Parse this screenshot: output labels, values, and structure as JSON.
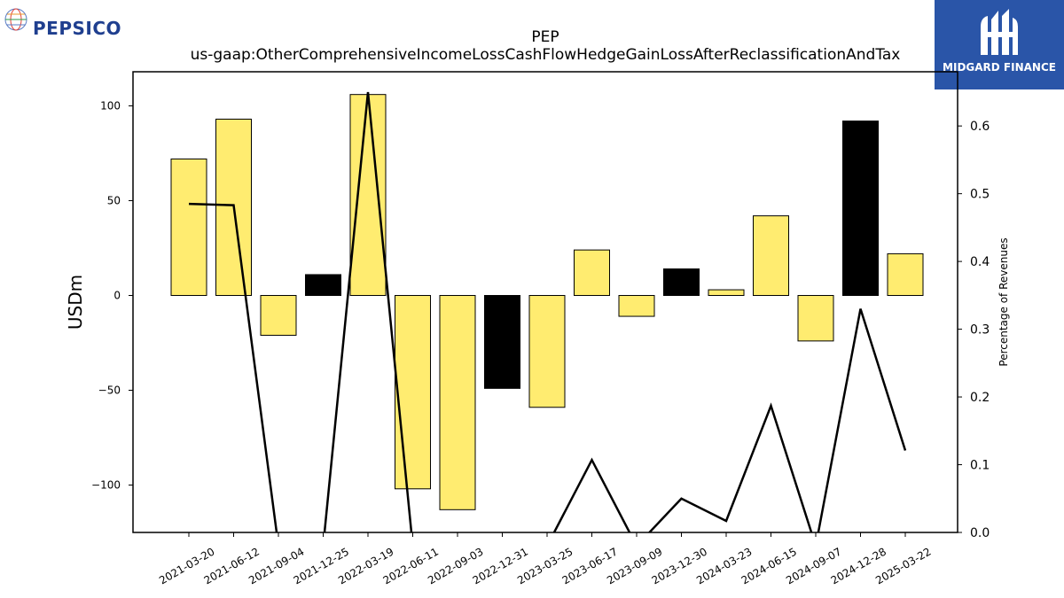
{
  "brand": {
    "company_logo": "PEPSICO",
    "publisher_logo": "MIDGARD FINANCE"
  },
  "colors": {
    "bar_positive_default": "#ffec70",
    "bar_highlight": "#000000",
    "line": "#000000",
    "publisher_bg": "#2a55a8",
    "company_text": "#1f3f8f"
  },
  "chart_data": {
    "type": "bar",
    "title": "PEP",
    "subtitle": "us-gaap:OtherComprehensiveIncomeLossCashFlowHedgeGainLossAfterReclassificationAndTax",
    "ylabel": "USDm",
    "y2label": "Percentage of Revenues",
    "ylim": [
      -125,
      118
    ],
    "y2lim": [
      0.0,
      0.68
    ],
    "yticks": [
      -100,
      -50,
      0,
      50,
      100
    ],
    "y2ticks": [
      0.0,
      0.1,
      0.2,
      0.3,
      0.4,
      0.5,
      0.6
    ],
    "ytick_labels": [
      "−100",
      "−50",
      "0",
      "50",
      "100"
    ],
    "y2tick_labels": [
      "0.0",
      "0.1",
      "0.2",
      "0.3",
      "0.4",
      "0.5",
      "0.6"
    ],
    "grid": false,
    "categories": [
      "2021-03-20",
      "2021-06-12",
      "2021-09-04",
      "2021-12-25",
      "2022-03-19",
      "2022-06-11",
      "2022-09-03",
      "2022-12-31",
      "2023-03-25",
      "2023-06-17",
      "2023-09-09",
      "2023-12-30",
      "2024-03-23",
      "2024-06-15",
      "2024-09-07",
      "2024-12-28",
      "2025-03-22"
    ],
    "series": [
      {
        "type": "bar",
        "axis": "left",
        "values": [
          72,
          93,
          -21,
          11,
          106,
          -102,
          -113,
          -49,
          -59,
          24,
          -11,
          14,
          3,
          42,
          -24,
          92,
          22
        ],
        "highlight": [
          false,
          false,
          false,
          true,
          false,
          false,
          false,
          true,
          false,
          false,
          false,
          true,
          false,
          false,
          false,
          true,
          false
        ]
      },
      {
        "type": "line",
        "axis": "right",
        "values": [
          0.485,
          0.483,
          -0.02,
          -0.02,
          0.65,
          -0.02,
          -0.02,
          -0.02,
          -0.02,
          0.107,
          -0.02,
          0.05,
          0.017,
          0.187,
          -0.02,
          0.33,
          0.121
        ]
      }
    ]
  }
}
